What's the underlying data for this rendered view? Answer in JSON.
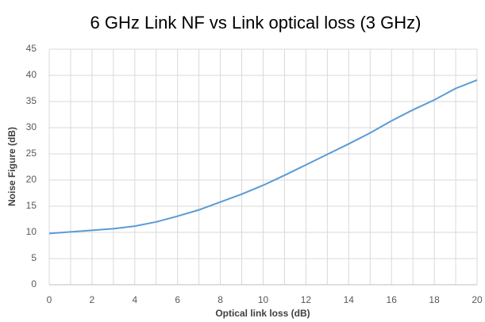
{
  "chart_data": {
    "type": "line",
    "title": "6 GHz Link NF vs Link optical loss (3 GHz)",
    "x_label": "Optical link loss (dB)",
    "y_label": "Noise Figure (dB)",
    "x": [
      0,
      1,
      2,
      3,
      4,
      5,
      6,
      7,
      8,
      9,
      10,
      11,
      12,
      13,
      14,
      15,
      16,
      17,
      18,
      19,
      20
    ],
    "series": [
      {
        "name": "Noise Figure",
        "color": "#5b9bd5",
        "values": [
          9.8,
          10.1,
          10.4,
          10.7,
          11.2,
          12.0,
          13.1,
          14.3,
          15.8,
          17.3,
          19.0,
          20.9,
          22.9,
          24.9,
          26.9,
          29.0,
          31.3,
          33.4,
          35.3,
          37.5,
          39.1
        ]
      }
    ],
    "xlim": [
      0,
      20
    ],
    "xticks": [
      0,
      2,
      4,
      6,
      8,
      10,
      12,
      14,
      16,
      18,
      20
    ],
    "x_minor_ticks": [
      1,
      3,
      5,
      7,
      9,
      11,
      13,
      15,
      17,
      19
    ],
    "ylim": [
      0,
      45
    ],
    "yticks": [
      0,
      5,
      10,
      15,
      20,
      25,
      30,
      35,
      40,
      45
    ],
    "grid": true
  }
}
